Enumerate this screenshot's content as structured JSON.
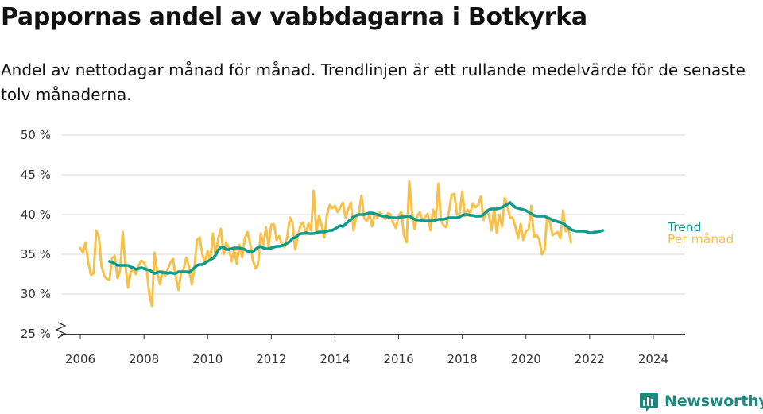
{
  "title": "Pappornas andel av vabbdagarna i Botkyrka",
  "subtitle": "Andel av nettodagar månad för månad. Trendlinjen är ett rullande medelvärde för de senaste tolv månaderna.",
  "brand": {
    "name": "Newsworthy",
    "icon": "bar-chart-icon",
    "color": "#1a8a7e"
  },
  "chart_data": {
    "type": "line",
    "title": "",
    "xlabel": "",
    "ylabel": "",
    "xlim": [
      2005.4,
      2025.0
    ],
    "ylim": [
      25,
      50
    ],
    "y_ticks": [
      "25 %",
      "30 %",
      "35 %",
      "40 %",
      "45 %",
      "50 %"
    ],
    "x_ticks": [
      "2006",
      "2008",
      "2010",
      "2012",
      "2014",
      "2016",
      "2018",
      "2020",
      "2022",
      "2024"
    ],
    "y_axis_break": true,
    "grid": "horizontal",
    "legend": "direct labels at right end of lines",
    "series": [
      {
        "name": "Per månad",
        "color": "#f7c04a",
        "x_start": 2006.0,
        "step_months": 1,
        "values": [
          35.8,
          35.2,
          36.5,
          34.0,
          32.4,
          32.6,
          38.0,
          37.2,
          33.5,
          32.3,
          31.9,
          31.8,
          34.5,
          34.8,
          32.0,
          33.0,
          37.8,
          33.6,
          30.8,
          32.8,
          33.1,
          32.5,
          33.6,
          34.2,
          34.0,
          33.1,
          30.0,
          28.5,
          35.2,
          32.8,
          31.2,
          32.9,
          32.3,
          33.1,
          34.0,
          34.4,
          32.1,
          30.5,
          32.7,
          33.2,
          34.6,
          33.4,
          31.2,
          33.2,
          36.8,
          37.1,
          35.0,
          33.8,
          35.4,
          34.2,
          37.6,
          34.8,
          37.0,
          38.2,
          35.0,
          36.5,
          35.8,
          34.1,
          35.6,
          33.8,
          36.2,
          34.6,
          37.0,
          37.8,
          36.4,
          34.3,
          33.2,
          33.7,
          37.6,
          36.2,
          38.4,
          36.0,
          38.7,
          38.8,
          36.8,
          37.3,
          36.2,
          35.9,
          37.2,
          39.6,
          39.0,
          35.6,
          37.2,
          38.7,
          39.0,
          37.5,
          38.9,
          38.0,
          43.0,
          37.8,
          39.8,
          38.6,
          37.1,
          40.0,
          41.2,
          40.8,
          41.1,
          40.3,
          40.9,
          41.5,
          39.6,
          40.7,
          41.5,
          38.0,
          39.6,
          40.2,
          42.4,
          39.5,
          39.2,
          40.0,
          38.5,
          40.2,
          39.6,
          40.3,
          39.8,
          39.4,
          40.2,
          40.0,
          38.9,
          38.3,
          39.8,
          40.4,
          37.4,
          36.5,
          44.2,
          40.5,
          38.2,
          39.8,
          40.3,
          39.2,
          39.7,
          40.1,
          38.0,
          40.6,
          39.5,
          43.9,
          39.2,
          38.6,
          38.4,
          40.5,
          42.5,
          42.6,
          40.0,
          40.1,
          42.9,
          39.8,
          40.6,
          40.2,
          41.4,
          40.9,
          41.2,
          42.3,
          39.3,
          40.5,
          40.1,
          38.0,
          40.8,
          37.7,
          40.0,
          38.5,
          42.1,
          41.2,
          39.6,
          39.6,
          38.5,
          37.0,
          38.8,
          36.8,
          37.9,
          38.1,
          41.1,
          37.2,
          37.4,
          36.9,
          35.0,
          35.5,
          39.8,
          39.1,
          37.4,
          37.6,
          37.8,
          37.0,
          40.5,
          37.9,
          38.3,
          36.5
        ]
      },
      {
        "name": "Trend",
        "color": "#0f9a8c",
        "x_start": 2006.917,
        "step_months": 1,
        "values": [
          34.1,
          34.0,
          33.8,
          33.6,
          33.6,
          33.6,
          33.6,
          33.6,
          33.4,
          33.3,
          33.1,
          33.2,
          33.3,
          33.2,
          33.1,
          33.0,
          32.8,
          32.6,
          32.7,
          32.8,
          32.7,
          32.7,
          32.6,
          32.7,
          32.6,
          32.6,
          32.8,
          32.8,
          32.8,
          32.8,
          32.7,
          33.0,
          33.3,
          33.6,
          33.7,
          33.7,
          33.9,
          34.1,
          34.3,
          34.5,
          34.9,
          35.5,
          35.9,
          35.9,
          35.6,
          35.6,
          35.7,
          35.8,
          35.8,
          35.8,
          35.7,
          35.6,
          35.4,
          35.3,
          35.3,
          35.6,
          35.9,
          36.0,
          35.8,
          35.7,
          35.7,
          35.8,
          35.9,
          36.0,
          36.0,
          36.1,
          36.2,
          36.4,
          36.6,
          37.0,
          37.1,
          37.4,
          37.6,
          37.6,
          37.7,
          37.6,
          37.6,
          37.6,
          37.7,
          37.8,
          37.8,
          37.8,
          37.9,
          38.0,
          38.0,
          38.2,
          38.4,
          38.6,
          38.5,
          38.8,
          39.1,
          39.4,
          39.7,
          39.9,
          40.0,
          40.0,
          40.0,
          40.1,
          40.2,
          40.2,
          40.1,
          40.0,
          39.9,
          39.8,
          39.8,
          39.7,
          39.6,
          39.6,
          39.6,
          39.6,
          39.7,
          39.7,
          39.8,
          39.8,
          39.6,
          39.4,
          39.3,
          39.3,
          39.2,
          39.2,
          39.2,
          39.2,
          39.2,
          39.3,
          39.4,
          39.4,
          39.4,
          39.5,
          39.6,
          39.6,
          39.6,
          39.6,
          39.7,
          39.9,
          40.0,
          40.0,
          39.9,
          39.9,
          39.8,
          39.8,
          39.8,
          40.0,
          40.3,
          40.6,
          40.7,
          40.7,
          40.7,
          40.8,
          40.9,
          41.1,
          41.3,
          41.5,
          41.2,
          40.9,
          40.8,
          40.7,
          40.6,
          40.5,
          40.3,
          40.1,
          39.9,
          39.8,
          39.8,
          39.8,
          39.8,
          39.6,
          39.5,
          39.3,
          39.2,
          39.1,
          39.0,
          38.9,
          38.6,
          38.4,
          38.1,
          38.0,
          37.9,
          37.9,
          37.9,
          37.9,
          37.8,
          37.7,
          37.7,
          37.8,
          37.8,
          37.9,
          38.0
        ]
      }
    ]
  }
}
